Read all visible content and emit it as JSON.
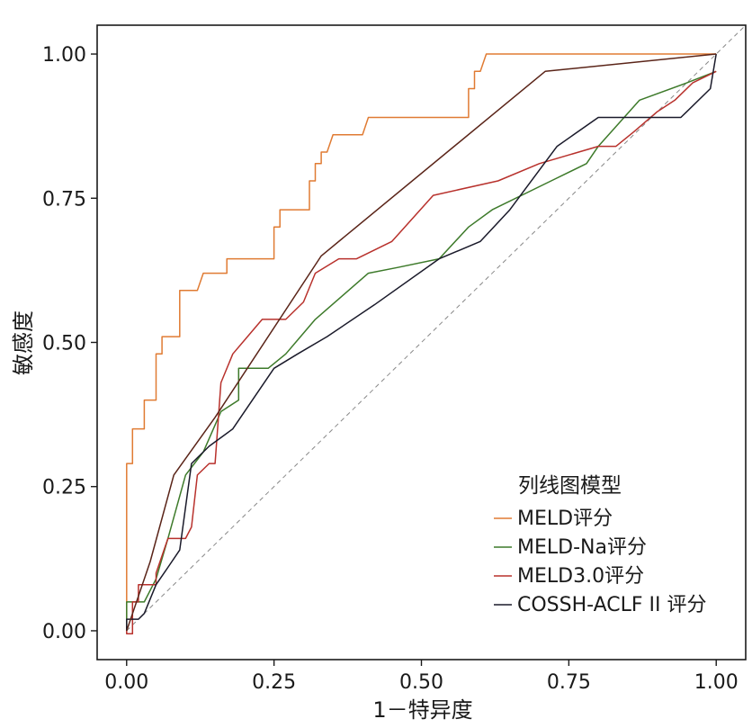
{
  "chart_data": {
    "type": "line",
    "xlabel": "1－特异度",
    "ylabel": "敏感度",
    "xlim": [
      -0.05,
      1.05
    ],
    "ylim": [
      -0.05,
      1.05
    ],
    "x_ticks": [
      "0.00",
      "0.25",
      "0.50",
      "0.75",
      "1.00"
    ],
    "y_ticks": [
      "0.00",
      "0.25",
      "0.50",
      "0.75",
      "1.00"
    ],
    "grid": false,
    "legend": {
      "title": "列线图模型",
      "position": "bottom-right"
    },
    "reference_line": {
      "from": [
        0,
        0
      ],
      "to": [
        1,
        1
      ],
      "style": "dashed",
      "color": "#888888"
    },
    "series": [
      {
        "name": "MELD评分",
        "color": "#e07b33",
        "points": [
          [
            0,
            0
          ],
          [
            0,
            0.05
          ],
          [
            0,
            0.29
          ],
          [
            0.01,
            0.29
          ],
          [
            0.01,
            0.35
          ],
          [
            0.03,
            0.35
          ],
          [
            0.03,
            0.4
          ],
          [
            0.05,
            0.4
          ],
          [
            0.05,
            0.48
          ],
          [
            0.06,
            0.48
          ],
          [
            0.06,
            0.51
          ],
          [
            0.09,
            0.51
          ],
          [
            0.09,
            0.59
          ],
          [
            0.12,
            0.59
          ],
          [
            0.13,
            0.62
          ],
          [
            0.17,
            0.62
          ],
          [
            0.17,
            0.645
          ],
          [
            0.25,
            0.645
          ],
          [
            0.25,
            0.7
          ],
          [
            0.26,
            0.7
          ],
          [
            0.26,
            0.73
          ],
          [
            0.31,
            0.73
          ],
          [
            0.31,
            0.78
          ],
          [
            0.32,
            0.78
          ],
          [
            0.32,
            0.81
          ],
          [
            0.33,
            0.81
          ],
          [
            0.33,
            0.83
          ],
          [
            0.34,
            0.83
          ],
          [
            0.35,
            0.86
          ],
          [
            0.4,
            0.86
          ],
          [
            0.41,
            0.89
          ],
          [
            0.58,
            0.89
          ],
          [
            0.58,
            0.94
          ],
          [
            0.59,
            0.94
          ],
          [
            0.59,
            0.97
          ],
          [
            0.6,
            0.97
          ],
          [
            0.61,
            1.0
          ],
          [
            1.0,
            1.0
          ]
        ]
      },
      {
        "name": "MELD-Na评分",
        "color": "#3d7a2a",
        "points": [
          [
            0,
            0
          ],
          [
            0,
            0.05
          ],
          [
            0.02,
            0.05
          ],
          [
            0.03,
            0.05
          ],
          [
            0.05,
            0.09
          ],
          [
            0.07,
            0.16
          ],
          [
            0.1,
            0.27
          ],
          [
            0.13,
            0.31
          ],
          [
            0.16,
            0.38
          ],
          [
            0.19,
            0.4
          ],
          [
            0.19,
            0.455
          ],
          [
            0.24,
            0.455
          ],
          [
            0.27,
            0.48
          ],
          [
            0.32,
            0.54
          ],
          [
            0.41,
            0.62
          ],
          [
            0.46,
            0.63
          ],
          [
            0.53,
            0.645
          ],
          [
            0.58,
            0.7
          ],
          [
            0.62,
            0.73
          ],
          [
            0.72,
            0.78
          ],
          [
            0.78,
            0.81
          ],
          [
            0.8,
            0.84
          ],
          [
            0.87,
            0.92
          ],
          [
            0.95,
            0.95
          ],
          [
            1.0,
            0.97
          ]
        ]
      },
      {
        "name": "MELD3.0评分",
        "color": "#b8312c",
        "points": [
          [
            0,
            0
          ],
          [
            0,
            -0.005
          ],
          [
            0.01,
            -0.005
          ],
          [
            0.01,
            0.05
          ],
          [
            0.02,
            0.05
          ],
          [
            0.02,
            0.08
          ],
          [
            0.05,
            0.08
          ],
          [
            0.05,
            0.1
          ],
          [
            0.07,
            0.16
          ],
          [
            0.1,
            0.16
          ],
          [
            0.11,
            0.18
          ],
          [
            0.12,
            0.27
          ],
          [
            0.14,
            0.29
          ],
          [
            0.15,
            0.29
          ],
          [
            0.16,
            0.43
          ],
          [
            0.18,
            0.48
          ],
          [
            0.23,
            0.54
          ],
          [
            0.27,
            0.54
          ],
          [
            0.3,
            0.57
          ],
          [
            0.32,
            0.62
          ],
          [
            0.36,
            0.645
          ],
          [
            0.39,
            0.645
          ],
          [
            0.45,
            0.675
          ],
          [
            0.52,
            0.755
          ],
          [
            0.63,
            0.78
          ],
          [
            0.7,
            0.81
          ],
          [
            0.8,
            0.84
          ],
          [
            0.83,
            0.84
          ],
          [
            0.86,
            0.865
          ],
          [
            0.9,
            0.9
          ],
          [
            0.93,
            0.92
          ],
          [
            0.96,
            0.95
          ],
          [
            1.0,
            0.97
          ]
        ]
      },
      {
        "name": "COSSH-ACLF II 评分",
        "color": "#1a1a2a",
        "points": [
          [
            0,
            0
          ],
          [
            0,
            0.02
          ],
          [
            0.02,
            0.02
          ],
          [
            0.03,
            0.03
          ],
          [
            0.05,
            0.08
          ],
          [
            0.07,
            0.11
          ],
          [
            0.09,
            0.14
          ],
          [
            0.11,
            0.29
          ],
          [
            0.14,
            0.32
          ],
          [
            0.18,
            0.35
          ],
          [
            0.25,
            0.455
          ],
          [
            0.29,
            0.48
          ],
          [
            0.34,
            0.51
          ],
          [
            0.42,
            0.565
          ],
          [
            0.53,
            0.645
          ],
          [
            0.6,
            0.675
          ],
          [
            0.65,
            0.73
          ],
          [
            0.73,
            0.84
          ],
          [
            0.8,
            0.89
          ],
          [
            0.94,
            0.89
          ],
          [
            0.99,
            0.94
          ],
          [
            1.0,
            1.0
          ]
        ]
      },
      {
        "name": "",
        "color": "#5a2418",
        "points": [
          [
            0,
            0
          ],
          [
            0.02,
            0.06
          ],
          [
            0.04,
            0.12
          ],
          [
            0.08,
            0.27
          ],
          [
            0.15,
            0.37
          ],
          [
            0.33,
            0.65
          ],
          [
            0.71,
            0.97
          ],
          [
            1.0,
            1.0
          ]
        ]
      }
    ]
  }
}
